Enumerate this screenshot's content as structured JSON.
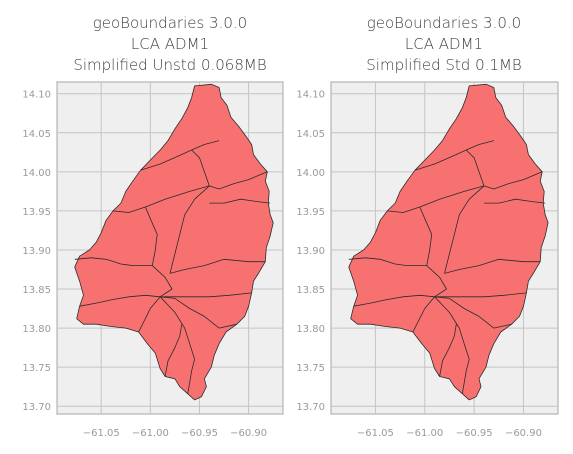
{
  "chart_data": [
    {
      "type": "map",
      "title": [
        "geoBoundaries 3.0.0",
        "LCA ADM1",
        "Simplified Unstd 0.068MB"
      ],
      "xlabel": "",
      "ylabel": "",
      "xlim": [
        -61.095,
        -60.865
      ],
      "ylim": [
        13.69,
        14.115
      ],
      "xticks": [
        -61.05,
        -61.0,
        -60.95,
        -60.9
      ],
      "xtick_labels": [
        "−61.05",
        "−61.00",
        "−60.95",
        "−60.90"
      ],
      "yticks": [
        13.7,
        13.75,
        13.8,
        13.85,
        13.9,
        13.95,
        14.0,
        14.05,
        14.1
      ],
      "ytick_labels": [
        "13.70",
        "13.75",
        "13.80",
        "13.85",
        "13.90",
        "13.95",
        "14.00",
        "14.05",
        "14.10"
      ],
      "grid": true,
      "fill_color": "#f87171",
      "edge_color": "#2b2b2b",
      "background": "#efefef"
    },
    {
      "type": "map",
      "title": [
        "geoBoundaries 3.0.0",
        "LCA ADM1",
        "Simplified Std 0.1MB"
      ],
      "xlabel": "",
      "ylabel": "",
      "xlim": [
        -61.095,
        -60.865
      ],
      "ylim": [
        13.69,
        14.115
      ],
      "xticks": [
        -61.05,
        -61.0,
        -60.95,
        -60.9
      ],
      "xtick_labels": [
        "−61.05",
        "−61.00",
        "−60.95",
        "−60.90"
      ],
      "yticks": [
        13.7,
        13.75,
        13.8,
        13.85,
        13.9,
        13.95,
        14.0,
        14.05,
        14.1
      ],
      "ytick_labels": [
        "13.70",
        "13.75",
        "13.80",
        "13.85",
        "13.90",
        "13.95",
        "14.00",
        "14.05",
        "14.10"
      ],
      "grid": true,
      "fill_color": "#f87171",
      "edge_color": "#2b2b2b",
      "background": "#efefef"
    }
  ]
}
